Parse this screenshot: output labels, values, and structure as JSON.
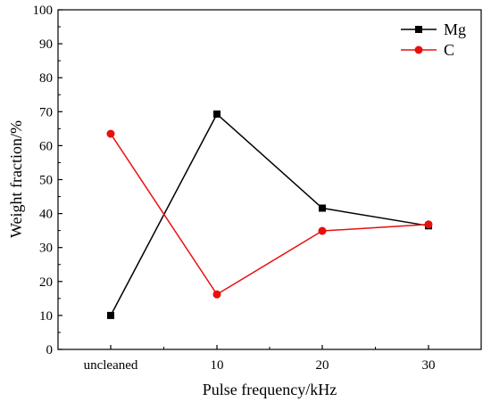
{
  "chart_data": {
    "type": "line",
    "categories": [
      "uncleaned",
      "10",
      "20",
      "30"
    ],
    "xlabel": "Pulse frequency/kHz",
    "ylabel": "Weight fraction/%",
    "ylim": [
      0,
      100
    ],
    "yticks": [
      "0",
      "10",
      "20",
      "30",
      "40",
      "50",
      "60",
      "70",
      "80",
      "90",
      "100"
    ],
    "grid": false,
    "legend_position": "top-right",
    "series": [
      {
        "name": "Mg",
        "values": [
          10,
          69.3,
          41.6,
          36.4
        ],
        "color": "#000000",
        "marker": "square"
      },
      {
        "name": "C",
        "values": [
          63.5,
          16.2,
          34.9,
          36.8
        ],
        "color": "#e8100e",
        "marker": "circle"
      }
    ]
  }
}
